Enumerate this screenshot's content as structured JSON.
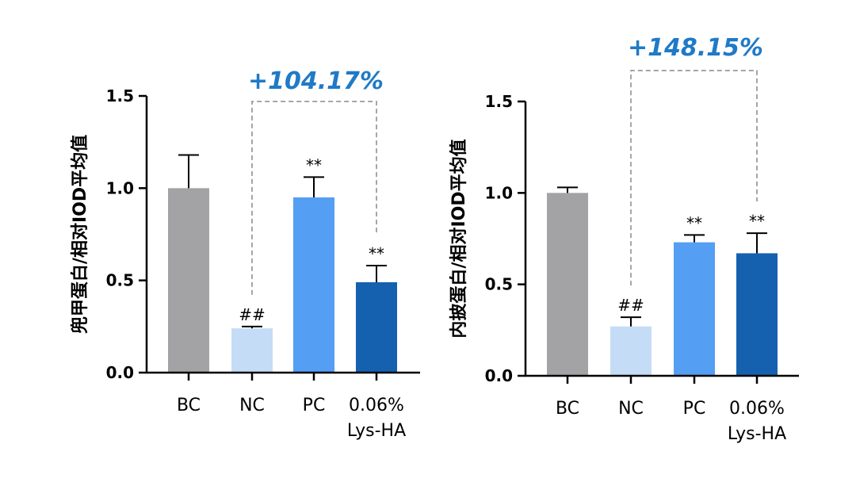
{
  "chart_data": [
    {
      "type": "bar",
      "ylabel": "兜甲蛋白/相对IOD平均值",
      "ylim": [
        0,
        1.5
      ],
      "yticks": [
        "0.0",
        "0.5",
        "1.0",
        "1.5"
      ],
      "categories": [
        "BC",
        "NC",
        "PC",
        "0.06%|Lys-HA"
      ],
      "values": [
        1.0,
        0.24,
        0.95,
        0.49
      ],
      "errors": [
        0.18,
        0.01,
        0.11,
        0.09
      ],
      "significance": [
        "",
        "##",
        "**",
        "**"
      ],
      "colors": [
        "#a3a3a6",
        "#c5dcf6",
        "#549ef4",
        "#1561b0"
      ],
      "comparison": {
        "from": 1,
        "to": 3,
        "label": "+104.17%"
      }
    },
    {
      "type": "bar",
      "ylabel": "内披蛋白/相对IOD平均值",
      "ylim": [
        0,
        1.5
      ],
      "yticks": [
        "0.0",
        "0.5",
        "1.0",
        "1.5"
      ],
      "categories": [
        "BC",
        "NC",
        "PC",
        "0.06%|Lys-HA"
      ],
      "values": [
        1.0,
        0.27,
        0.73,
        0.67
      ],
      "errors": [
        0.03,
        0.05,
        0.04,
        0.11
      ],
      "significance": [
        "",
        "##",
        "**",
        "**"
      ],
      "colors": [
        "#a3a3a6",
        "#c5dcf6",
        "#549ef4",
        "#1561b0"
      ],
      "comparison": {
        "from": 1,
        "to": 3,
        "label": "+148.15%"
      }
    }
  ]
}
